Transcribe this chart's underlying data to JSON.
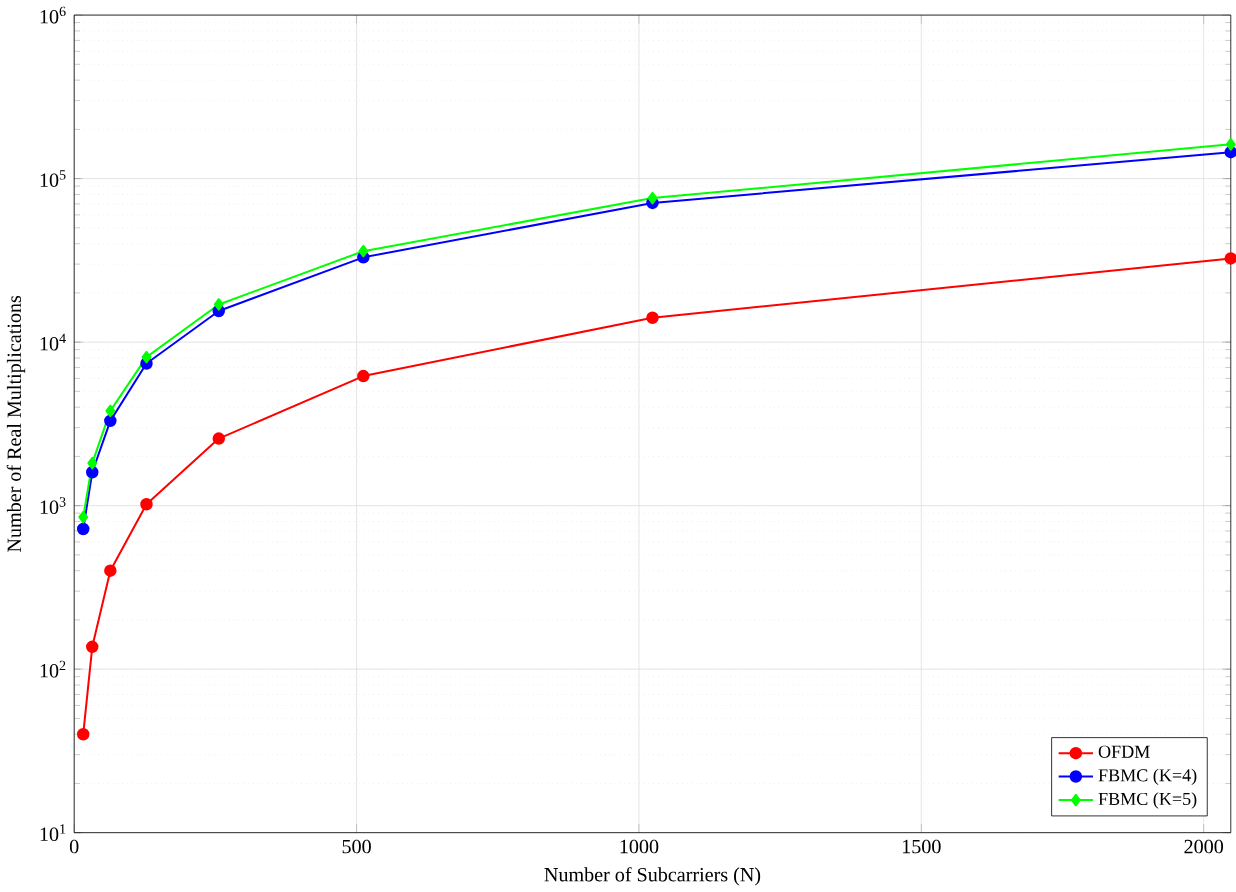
{
  "chart_data": {
    "type": "line",
    "xlabel": "Number of Subcarriers (N)",
    "ylabel": "Number of Real Multiplications",
    "x": [
      16,
      32,
      64,
      128,
      256,
      512,
      1024,
      2048
    ],
    "series": [
      {
        "name": "OFDM",
        "color": "#ff0000",
        "marker": "circle",
        "values": [
          40,
          137,
          400,
          1020,
          2570,
          6200,
          14100,
          32500
        ]
      },
      {
        "name": "FBMC (K=4)",
        "color": "#0000ff",
        "marker": "circle",
        "values": [
          720,
          1600,
          3300,
          7400,
          15500,
          33000,
          71000,
          145000
        ]
      },
      {
        "name": "FBMC (K=5)",
        "color": "#00ff00",
        "marker": "diamond",
        "values": [
          850,
          1820,
          3800,
          8100,
          17000,
          36000,
          76000,
          162000
        ]
      }
    ],
    "xlim": [
      0,
      2048
    ],
    "xticks": [
      0,
      500,
      1000,
      1500,
      2000
    ],
    "ylim": [
      10,
      1000000
    ],
    "yticks": [
      {
        "value": 10,
        "label": "10$^{1}$"
      },
      {
        "value": 100,
        "label": "10$^{2}$"
      },
      {
        "value": 1000,
        "label": "10$^{3}$"
      },
      {
        "value": 10000,
        "label": "10$^{4}$"
      },
      {
        "value": 100000,
        "label": "10$^{5}$"
      },
      {
        "value": 1000000,
        "label": "10$^{6}$"
      }
    ],
    "log": "y",
    "grid": true,
    "legend": "bottom right",
    "line_style": "solid"
  }
}
